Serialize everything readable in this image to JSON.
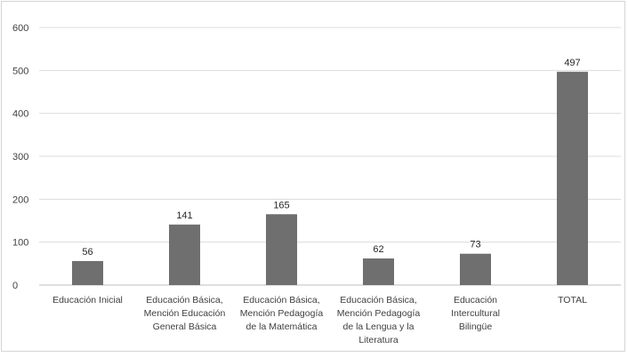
{
  "chart_data": {
    "type": "bar",
    "title": "",
    "xlabel": "",
    "ylabel": "",
    "ylim": [
      0,
      600
    ],
    "yticks": [
      0,
      100,
      200,
      300,
      400,
      500,
      600
    ],
    "grid": true,
    "legend": "none",
    "bar_color": "#6f6f6f",
    "categories": [
      [
        "Educación Inicial"
      ],
      [
        "Educación Básica,",
        "Mención Educación",
        "General Básica"
      ],
      [
        "Educación Básica,",
        "Mención Pedagogía",
        "de la Matemática"
      ],
      [
        "Educación Básica,",
        "Mención Pedagogía",
        "de la Lengua y la",
        "Literatura"
      ],
      [
        "Educación",
        "Intercultural",
        "Bilingüe"
      ],
      [
        "TOTAL"
      ]
    ],
    "values": [
      56,
      141,
      165,
      62,
      73,
      497
    ]
  }
}
